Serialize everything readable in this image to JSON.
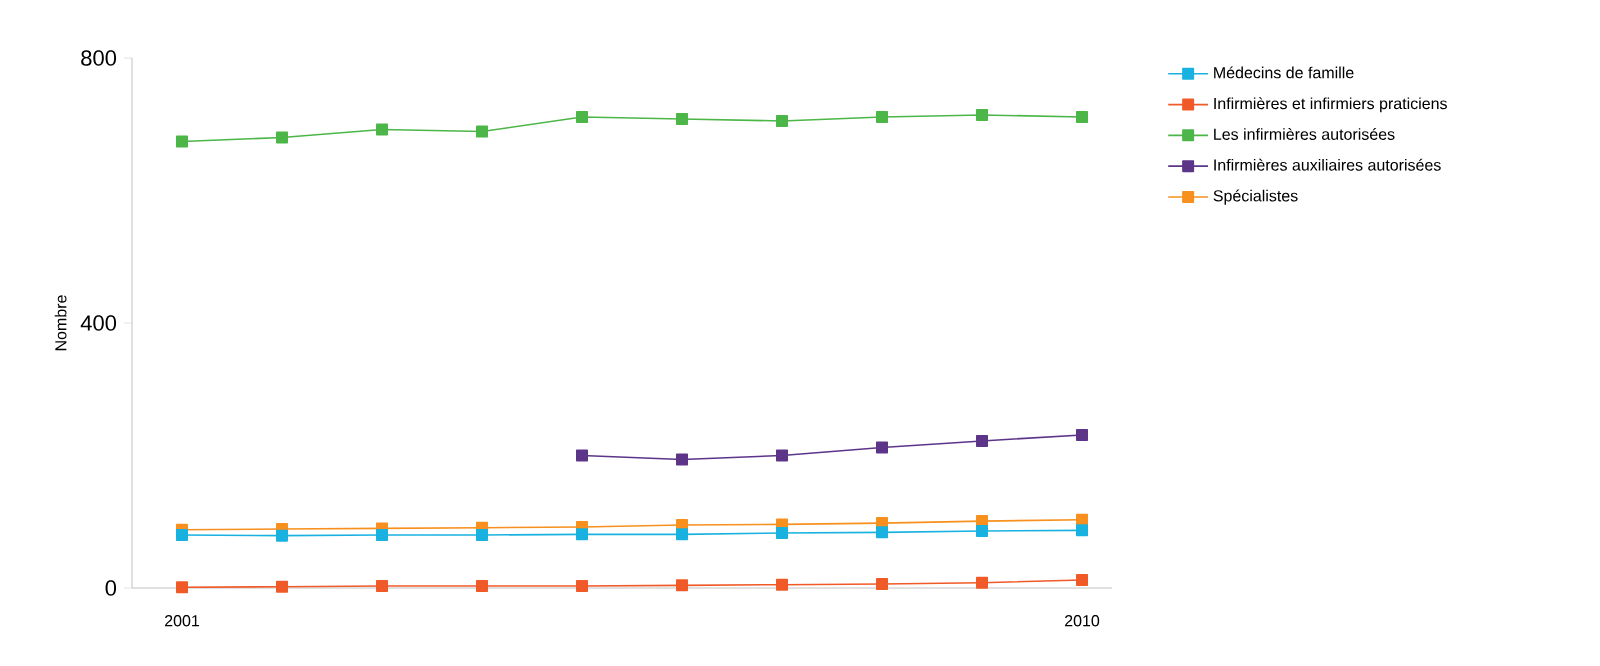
{
  "chart_data": {
    "type": "line",
    "ylabel": "Nombre",
    "x": [
      2001,
      2002,
      2003,
      2004,
      2005,
      2006,
      2007,
      2008,
      2009,
      2010
    ],
    "xlim": [
      2000.5,
      2010.3
    ],
    "xticks": [
      2001,
      2010
    ],
    "ylim": [
      0,
      800
    ],
    "yticks": [
      0,
      400,
      800
    ],
    "grid": false,
    "legend": "right",
    "marker": "square",
    "line_style": "solid",
    "series": [
      {
        "name": "Médecins de famille",
        "color": "#19b2e0",
        "values": [
          80,
          79,
          80,
          80,
          81,
          81,
          83,
          84,
          86,
          87
        ]
      },
      {
        "name": "Infirmières et infirmiers praticiens",
        "color": "#f05a28",
        "values": [
          1,
          2,
          3,
          3,
          3,
          4,
          5,
          6,
          8,
          12
        ]
      },
      {
        "name": "Les infirmières autorisées",
        "color": "#4cb648",
        "values": [
          674,
          680,
          692,
          689,
          711,
          708,
          705,
          711,
          714,
          711
        ]
      },
      {
        "name": "Infirmières auxiliaires autorisées",
        "color": "#5c3589",
        "values": [
          null,
          null,
          null,
          null,
          200,
          194,
          200,
          212,
          222,
          231
        ]
      },
      {
        "name": "Spécialistes",
        "color": "#f7901e",
        "values": [
          88,
          89,
          90,
          91,
          92,
          95,
          96,
          98,
          101,
          103
        ]
      }
    ]
  }
}
